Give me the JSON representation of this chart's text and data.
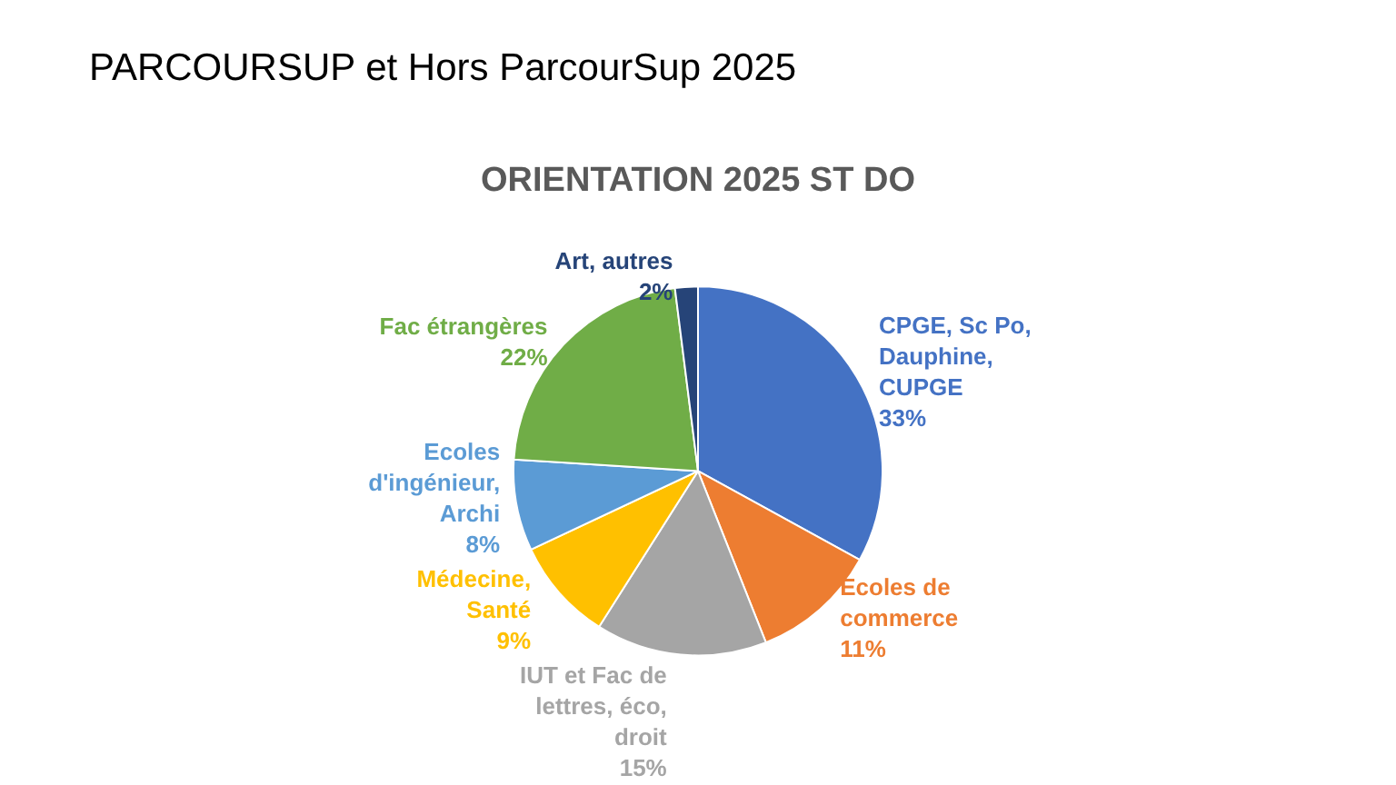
{
  "chart_data": {
    "type": "pie",
    "title": "PARCOURSUP et Hors ParcourSup 2025",
    "subtitle": "ORIENTATION 2025 ST DO",
    "categories": [
      "CPGE, Sc Po,\nDauphine,\nCUPGE",
      "Ecoles de\ncommerce",
      "IUT et Fac de\nlettres, éco,\ndroit",
      "Médecine,\nSanté",
      "Ecoles\nd'ingénieur,\nArchi",
      "Fac étrangères",
      "Art, autres"
    ],
    "values": [
      33,
      11,
      15,
      9,
      8,
      22,
      2
    ],
    "value_labels": [
      "33%",
      "11%",
      "15%",
      "9%",
      "8%",
      "22%",
      "2%"
    ],
    "colors": [
      "#4472c4",
      "#ed7d31",
      "#a5a5a5",
      "#ffc000",
      "#5b9bd5",
      "#70ad47",
      "#264478"
    ],
    "legend": false
  }
}
